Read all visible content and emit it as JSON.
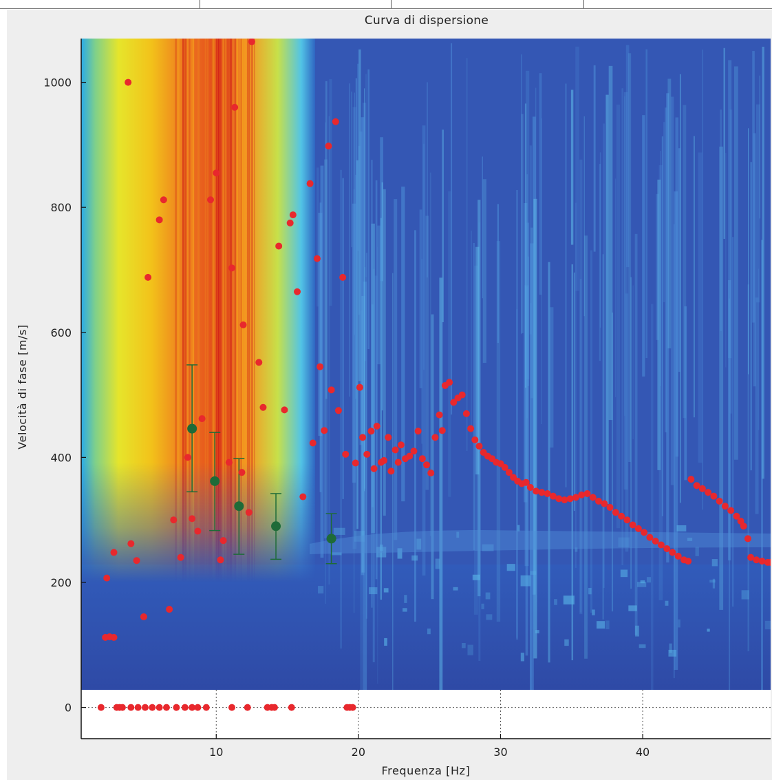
{
  "chart_data": {
    "type": "scatter",
    "title": "Curva di dispersione",
    "xlabel": "Frequenza [Hz]",
    "ylabel": "Velocità di fase  [m/s]",
    "xlim": [
      0.5,
      49
    ],
    "ylim": [
      -50,
      1070
    ],
    "xticks": [
      10,
      20,
      30,
      40
    ],
    "yticks": [
      0,
      200,
      400,
      600,
      800,
      1000
    ],
    "grid": "dotted at x ticks and y=0",
    "background": "phase-velocity spectrum heatmap (jet colormap); high energy 2-17 Hz above 270 m/s",
    "colors": {
      "picks": "#e8282d",
      "modal": "#1e6b38",
      "spectrum_low": "#2a4faa",
      "spectrum_high": "#d21f1f"
    },
    "series": [
      {
        "marker": "red dots",
        "points": [
          [
            2.2,
            112
          ],
          [
            2.5,
            113
          ],
          [
            2.8,
            112
          ],
          [
            2.3,
            207
          ],
          [
            2.8,
            248
          ],
          [
            3.8,
            1000
          ],
          [
            4.0,
            262
          ],
          [
            4.4,
            235
          ],
          [
            4.9,
            145
          ],
          [
            5.2,
            688
          ],
          [
            6.0,
            780
          ],
          [
            6.3,
            812
          ],
          [
            6.7,
            157
          ],
          [
            7.0,
            300
          ],
          [
            7.5,
            240
          ],
          [
            8.0,
            400
          ],
          [
            8.3,
            302
          ],
          [
            8.7,
            282
          ],
          [
            9.0,
            462
          ],
          [
            9.6,
            812
          ],
          [
            10.0,
            855
          ],
          [
            10.3,
            236
          ],
          [
            10.5,
            267
          ],
          [
            10.9,
            392
          ],
          [
            11.1,
            703
          ],
          [
            11.3,
            960
          ],
          [
            11.8,
            376
          ],
          [
            11.9,
            612
          ],
          [
            12.3,
            312
          ],
          [
            12.5,
            1065
          ],
          [
            13.0,
            552
          ],
          [
            13.3,
            480
          ],
          [
            14.4,
            738
          ],
          [
            14.8,
            476
          ],
          [
            15.2,
            775
          ],
          [
            15.4,
            788
          ],
          [
            15.7,
            665
          ],
          [
            16.1,
            337
          ],
          [
            16.6,
            838
          ],
          [
            16.8,
            423
          ],
          [
            17.1,
            718
          ],
          [
            17.3,
            545
          ],
          [
            17.6,
            443
          ],
          [
            17.9,
            898
          ],
          [
            18.1,
            508
          ],
          [
            18.4,
            937
          ],
          [
            18.6,
            475
          ],
          [
            18.9,
            688
          ],
          [
            19.1,
            405
          ],
          [
            19.8,
            391
          ],
          [
            20.1,
            512
          ],
          [
            20.3,
            432
          ],
          [
            20.6,
            405
          ],
          [
            20.9,
            442
          ],
          [
            21.1,
            382
          ],
          [
            21.3,
            450
          ],
          [
            21.6,
            392
          ],
          [
            21.8,
            395
          ],
          [
            22.1,
            432
          ],
          [
            22.3,
            378
          ],
          [
            22.6,
            412
          ],
          [
            22.8,
            392
          ],
          [
            23.0,
            420
          ],
          [
            23.3,
            398
          ],
          [
            23.6,
            402
          ],
          [
            23.9,
            410
          ],
          [
            24.2,
            442
          ],
          [
            24.5,
            398
          ],
          [
            24.8,
            388
          ],
          [
            25.1,
            375
          ],
          [
            25.4,
            432
          ],
          [
            25.7,
            468
          ],
          [
            25.9,
            443
          ],
          [
            26.1,
            515
          ],
          [
            26.4,
            520
          ],
          [
            26.7,
            488
          ],
          [
            27.0,
            495
          ],
          [
            27.3,
            500
          ],
          [
            27.6,
            470
          ],
          [
            27.9,
            446
          ],
          [
            28.2,
            428
          ],
          [
            28.5,
            418
          ],
          [
            28.8,
            408
          ],
          [
            29.1,
            402
          ],
          [
            29.4,
            398
          ],
          [
            29.7,
            392
          ],
          [
            30.0,
            390
          ],
          [
            30.3,
            384
          ],
          [
            30.6,
            376
          ],
          [
            30.9,
            368
          ],
          [
            31.2,
            362
          ],
          [
            31.5,
            358
          ],
          [
            31.8,
            360
          ],
          [
            32.1,
            352
          ],
          [
            32.5,
            346
          ],
          [
            32.9,
            344
          ],
          [
            33.3,
            342
          ],
          [
            33.7,
            338
          ],
          [
            34.1,
            334
          ],
          [
            34.5,
            332
          ],
          [
            34.9,
            334
          ],
          [
            35.3,
            336
          ],
          [
            35.7,
            340
          ],
          [
            36.1,
            342
          ],
          [
            36.5,
            336
          ],
          [
            36.9,
            330
          ],
          [
            37.3,
            326
          ],
          [
            37.7,
            320
          ],
          [
            38.1,
            312
          ],
          [
            38.5,
            306
          ],
          [
            38.9,
            300
          ],
          [
            39.3,
            292
          ],
          [
            39.7,
            286
          ],
          [
            40.1,
            280
          ],
          [
            40.5,
            272
          ],
          [
            40.9,
            266
          ],
          [
            41.3,
            260
          ],
          [
            41.7,
            254
          ],
          [
            42.1,
            248
          ],
          [
            42.5,
            242
          ],
          [
            42.9,
            236
          ],
          [
            43.2,
            234
          ],
          [
            43.4,
            365
          ],
          [
            43.8,
            355
          ],
          [
            44.2,
            350
          ],
          [
            44.6,
            344
          ],
          [
            45.0,
            338
          ],
          [
            45.4,
            330
          ],
          [
            45.8,
            322
          ],
          [
            46.2,
            315
          ],
          [
            46.6,
            306
          ],
          [
            46.9,
            298
          ],
          [
            47.1,
            290
          ],
          [
            47.4,
            270
          ],
          [
            47.6,
            240
          ],
          [
            48.0,
            236
          ],
          [
            48.4,
            234
          ],
          [
            48.8,
            232
          ],
          [
            49.0,
            232
          ],
          [
            1.9,
            0
          ],
          [
            3.0,
            0
          ],
          [
            3.2,
            0
          ],
          [
            3.4,
            0
          ],
          [
            4.0,
            0
          ],
          [
            4.5,
            0
          ],
          [
            5.0,
            0
          ],
          [
            5.5,
            0
          ],
          [
            6.0,
            0
          ],
          [
            6.5,
            0
          ],
          [
            7.2,
            0
          ],
          [
            7.8,
            0
          ],
          [
            8.3,
            0
          ],
          [
            8.7,
            0
          ],
          [
            9.3,
            0
          ],
          [
            11.1,
            0
          ],
          [
            12.2,
            0
          ],
          [
            13.6,
            0
          ],
          [
            13.9,
            0
          ],
          [
            14.1,
            0
          ],
          [
            15.3,
            0
          ],
          [
            19.2,
            0
          ],
          [
            19.4,
            0
          ],
          [
            19.6,
            0
          ]
        ]
      },
      {
        "marker": "green dots with error bars",
        "points": [
          {
            "x": 8.3,
            "y": 446,
            "low": 345,
            "high": 548
          },
          {
            "x": 9.9,
            "y": 362,
            "low": 283,
            "high": 440
          },
          {
            "x": 11.6,
            "y": 322,
            "low": 245,
            "high": 398
          },
          {
            "x": 14.2,
            "y": 290,
            "low": 237,
            "high": 342
          },
          {
            "x": 18.1,
            "y": 270,
            "low": 230,
            "high": 310
          }
        ]
      }
    ]
  }
}
